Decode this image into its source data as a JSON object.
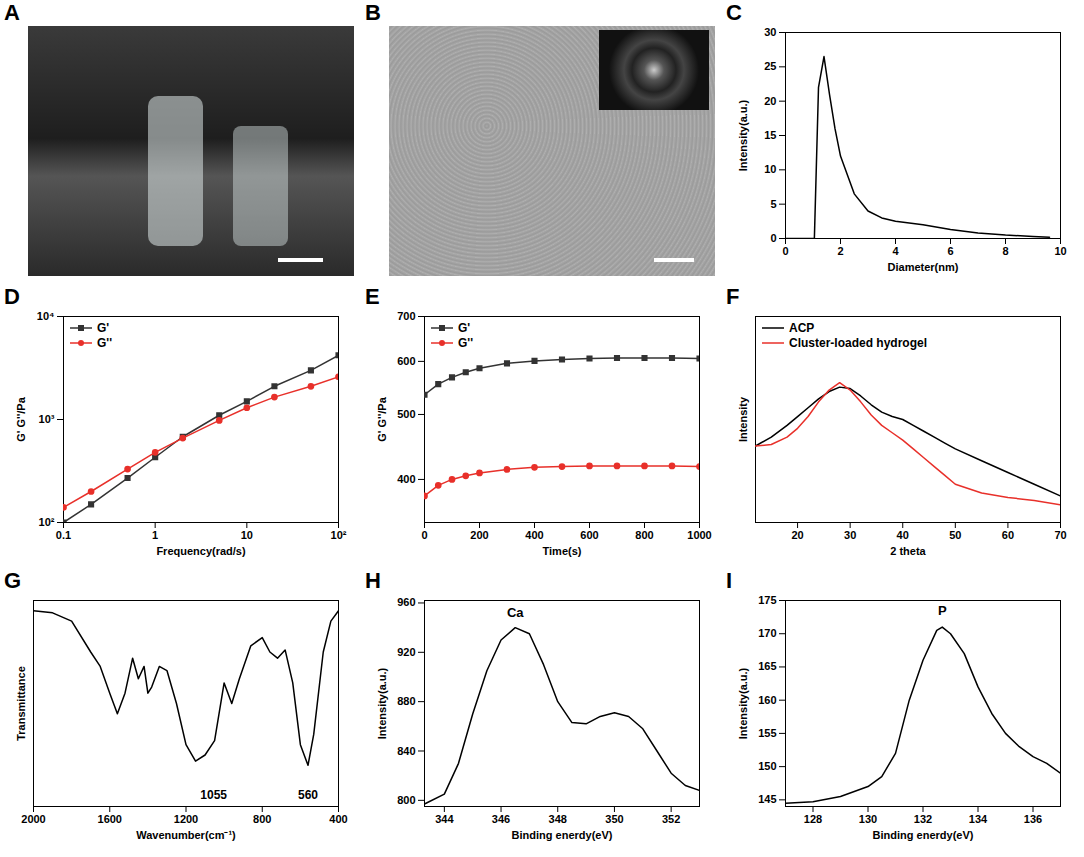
{
  "chart_data": [
    {
      "type": "image",
      "panel": "A"
    },
    {
      "type": "image",
      "panel": "B"
    },
    {
      "type": "line",
      "panel": "C",
      "xlabel": "Diameter(nm)",
      "ylabel": "Intensity(a.u.)",
      "x": [
        0,
        1,
        1.05,
        1.2,
        1.4,
        1.6,
        1.8,
        2,
        2.5,
        3,
        3.5,
        4,
        5,
        6,
        7,
        8,
        9,
        9.6
      ],
      "values": [
        0,
        0,
        0,
        22,
        26.5,
        21,
        16,
        12,
        6.5,
        4,
        3,
        2.5,
        2,
        1.3,
        0.8,
        0.5,
        0.3,
        0.2
      ],
      "color": "#000000",
      "xlim": [
        0,
        10
      ],
      "xticks": [
        0,
        2,
        4,
        6,
        8,
        10
      ],
      "ylim": [
        0,
        30
      ],
      "yticks": [
        0,
        5,
        10,
        15,
        20,
        25,
        30
      ]
    },
    {
      "type": "line",
      "panel": "D",
      "xlabel": "Frequency(rad/s)",
      "ylabel": "G' G''/Pa",
      "log": true,
      "x": [
        0.1,
        0.2,
        0.5,
        1,
        2,
        5,
        10,
        20,
        50,
        100
      ],
      "series": [
        {
          "name": "G'",
          "color": "#333333",
          "marker": "square",
          "values": [
            100,
            150,
            270,
            430,
            680,
            1100,
            1500,
            2100,
            3000,
            4200
          ]
        },
        {
          "name": "G''",
          "color": "#e8302a",
          "marker": "circle",
          "values": [
            140,
            200,
            330,
            480,
            660,
            980,
            1300,
            1650,
            2100,
            2600
          ]
        }
      ],
      "xlim": [
        0.1,
        100
      ],
      "xticks": [
        0.1,
        1,
        10,
        {
          "value": 100,
          "label": "10²"
        }
      ],
      "ylim": [
        100,
        10000
      ],
      "yticks": [
        {
          "value": 100,
          "label": "10²"
        },
        {
          "value": 1000,
          "label": "10³"
        },
        {
          "value": 10000,
          "label": "10⁴"
        }
      ],
      "legend": "top-left"
    },
    {
      "type": "line",
      "panel": "E",
      "xlabel": "Time(s)",
      "ylabel": "G' G''/Pa",
      "log": "y",
      "x": [
        0,
        50,
        100,
        150,
        200,
        300,
        400,
        500,
        600,
        700,
        800,
        900,
        1000
      ],
      "series": [
        {
          "name": "G'",
          "color": "#333333",
          "marker": "square",
          "values": [
            535,
            555,
            568,
            578,
            586,
            596,
            601,
            604,
            606,
            607,
            607,
            607,
            606
          ]
        },
        {
          "name": "G''",
          "color": "#e8302a",
          "marker": "circle",
          "values": [
            378,
            392,
            400,
            405,
            409,
            414,
            417,
            418,
            419,
            419,
            419,
            419,
            418
          ]
        }
      ],
      "xlim": [
        0,
        1000
      ],
      "xticks": [
        0,
        200,
        400,
        600,
        800,
        1000
      ],
      "ylim": [
        345,
        700
      ],
      "yticks": [
        400,
        500,
        600,
        700
      ],
      "legend": "top-left"
    },
    {
      "type": "line",
      "panel": "F",
      "xlabel": "2 theta",
      "ylabel": "Intensity",
      "tick_labels": "x",
      "x": [
        12,
        15,
        18,
        20,
        22,
        24,
        26,
        28,
        30,
        32,
        34,
        36,
        38,
        40,
        42,
        44,
        46,
        48,
        50,
        55,
        60,
        65,
        70
      ],
      "series": [
        {
          "name": "ACP",
          "color": "#000000",
          "values": [
            52,
            58,
            66,
            72,
            78,
            84,
            89,
            92,
            91,
            86,
            80,
            75,
            72,
            70,
            66,
            62,
            58,
            54,
            50,
            42,
            34,
            26,
            18
          ]
        },
        {
          "name": "Cluster-loaded hydrogel",
          "color": "#e8302a",
          "values": [
            52,
            53,
            58,
            64,
            72,
            82,
            90,
            95,
            90,
            82,
            73,
            66,
            61,
            56,
            50,
            44,
            38,
            32,
            26,
            20,
            17,
            15,
            12
          ]
        }
      ],
      "xlim": [
        12,
        70
      ],
      "xticks": [
        20,
        30,
        40,
        50,
        60,
        70
      ],
      "ylim": [
        0,
        140
      ],
      "yticks": [],
      "legend": "top-left"
    },
    {
      "type": "line",
      "panel": "G",
      "xlabel": "Wavenumber(cm⁻¹)",
      "ylabel": "Transmittance",
      "tick_labels": "x",
      "x": [
        2000,
        1900,
        1800,
        1700,
        1650,
        1600,
        1560,
        1520,
        1480,
        1450,
        1420,
        1400,
        1380,
        1340,
        1300,
        1250,
        1200,
        1150,
        1100,
        1050,
        1000,
        960,
        920,
        860,
        800,
        760,
        720,
        680,
        640,
        600,
        560,
        530,
        480,
        440,
        400
      ],
      "values": [
        95,
        94,
        90,
        75,
        68,
        55,
        45,
        55,
        72,
        62,
        68,
        55,
        58,
        68,
        66,
        50,
        30,
        22,
        25,
        32,
        60,
        50,
        62,
        78,
        82,
        75,
        72,
        76,
        60,
        30,
        20,
        35,
        75,
        90,
        95
      ],
      "color": "#000000",
      "xlim": [
        2000,
        400
      ],
      "xticks": [
        2000,
        1600,
        1200,
        800,
        400
      ],
      "ylim": [
        0,
        100
      ],
      "yticks": [],
      "annotations": [
        {
          "text": "1055",
          "x": 1055
        },
        {
          "text": "560",
          "x": 560
        }
      ]
    },
    {
      "type": "line",
      "panel": "H",
      "xlabel": "Binding enerdy(eV)",
      "ylabel": "Intensity(a.u.)",
      "x": [
        343.3,
        344,
        344.5,
        345,
        345.5,
        346,
        346.5,
        347,
        347.5,
        348,
        348.5,
        349,
        349.5,
        350,
        350.5,
        351,
        351.5,
        352,
        352.5,
        353
      ],
      "values": [
        797,
        805,
        830,
        870,
        905,
        930,
        940,
        935,
        910,
        880,
        863,
        862,
        868,
        871,
        868,
        858,
        840,
        822,
        812,
        808
      ],
      "color": "#000000",
      "xlim": [
        343.3,
        353
      ],
      "xticks": [
        344,
        346,
        348,
        350,
        352
      ],
      "ylim": [
        795,
        962
      ],
      "yticks": [
        800,
        840,
        880,
        920,
        960
      ],
      "annotations": [
        {
          "text": "Ca",
          "x": 346.5,
          "y": 952
        }
      ]
    },
    {
      "type": "line",
      "panel": "I",
      "xlabel": "Binding enerdy(eV)",
      "ylabel": "Intensity(a.u.)",
      "x": [
        127,
        128,
        129,
        130,
        130.5,
        131,
        131.5,
        132,
        132.5,
        132.7,
        133,
        133.5,
        134,
        134.5,
        135,
        135.5,
        136,
        136.5,
        137
      ],
      "values": [
        144.5,
        144.7,
        145.5,
        147,
        148.5,
        152,
        160,
        166,
        170.5,
        171,
        170,
        167,
        162,
        158,
        155,
        153,
        151.5,
        150.5,
        149
      ],
      "color": "#000000",
      "xlim": [
        127,
        137
      ],
      "xticks": [
        128,
        130,
        132,
        134,
        136
      ],
      "ylim": [
        144,
        175
      ],
      "yticks": [
        145,
        150,
        155,
        160,
        165,
        170,
        175
      ],
      "annotations": [
        {
          "text": "P",
          "x": 132.7,
          "y": 173.5
        }
      ]
    }
  ]
}
